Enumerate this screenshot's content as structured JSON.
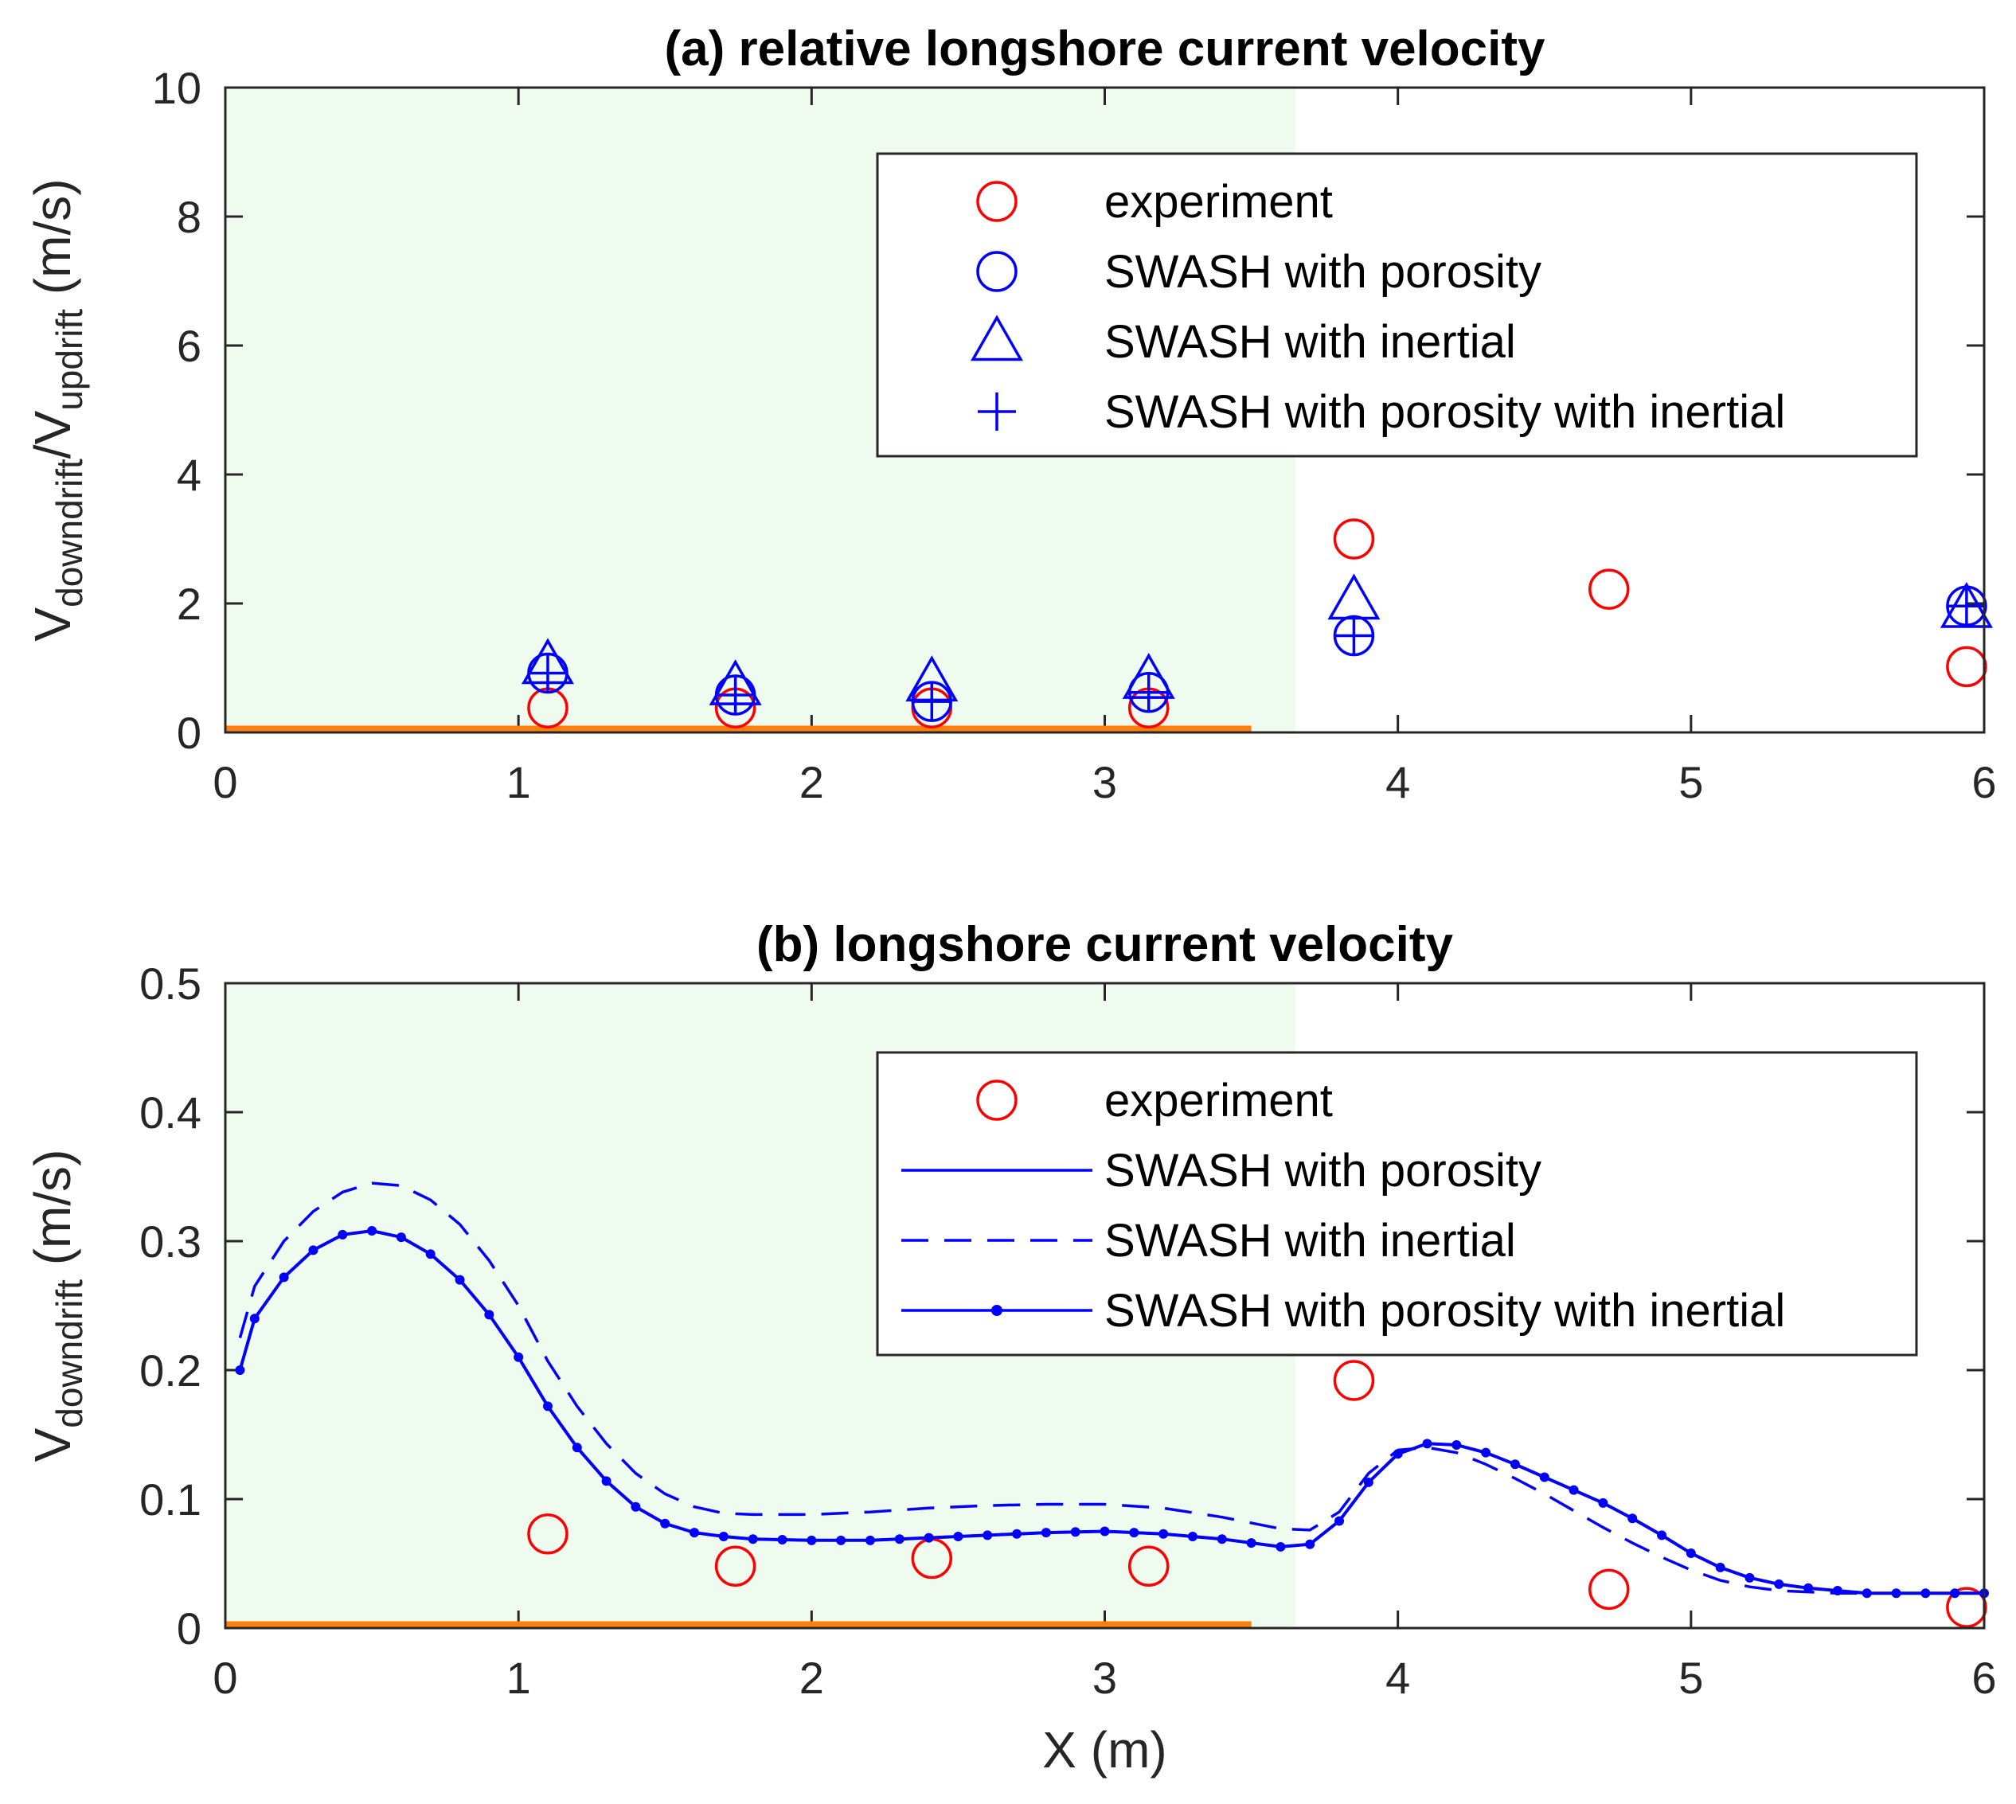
{
  "chart_data": [
    {
      "type": "scatter",
      "title": "(a) relative longshore current velocity",
      "xlabel": "",
      "ylabel": {
        "main": "V",
        "sub1": "downdrift",
        "mid": "/V",
        "sub2": "updrift",
        "unit": " (m/s)"
      },
      "xlim": [
        0,
        6
      ],
      "ylim": [
        0,
        10
      ],
      "xticks": [
        "0",
        "1",
        "2",
        "3",
        "4",
        "5",
        "6"
      ],
      "yticks": [
        "0",
        "2",
        "4",
        "6",
        "8",
        "10"
      ],
      "grid": false,
      "legend_position": "top-right",
      "shaded_region": {
        "x": [
          0,
          3.65
        ],
        "color": "#f0fbef"
      },
      "base_line": {
        "x": [
          0,
          3.5
        ],
        "y": 0,
        "color": "#ff7f0e"
      },
      "series": [
        {
          "name": "experiment",
          "marker": "circle",
          "color": "#ff0000",
          "x": [
            1.1,
            1.74,
            2.41,
            3.15,
            3.85,
            4.72,
            5.94
          ],
          "y": [
            0.38,
            0.38,
            0.38,
            0.38,
            3.0,
            2.22,
            1.02
          ]
        },
        {
          "name": "SWASH with porosity",
          "marker": "circle",
          "color": "#0000ff",
          "x": [
            1.1,
            1.74,
            2.41,
            3.15,
            3.85,
            5.94
          ],
          "y": [
            0.92,
            0.58,
            0.48,
            0.62,
            1.5,
            1.96
          ]
        },
        {
          "name": "SWASH with inertial",
          "marker": "triangle",
          "color": "#0000ff",
          "x": [
            1.1,
            1.74,
            2.41,
            3.15,
            3.85,
            5.94
          ],
          "y": [
            1.05,
            0.72,
            0.78,
            0.82,
            2.05,
            1.92
          ]
        },
        {
          "name": "SWASH with porosity with inertial",
          "marker": "plus",
          "color": "#0000ff",
          "x": [
            1.1,
            1.74,
            2.41,
            3.15,
            3.85,
            5.94
          ],
          "y": [
            0.92,
            0.58,
            0.48,
            0.62,
            1.5,
            1.96
          ]
        }
      ]
    },
    {
      "type": "line",
      "title": "(b) longshore current velocity",
      "xlabel": "X (m)",
      "ylabel": {
        "main": "V",
        "sub1": "downdrift",
        "unit": " (m/s)"
      },
      "xlim": [
        0,
        6
      ],
      "ylim": [
        0,
        0.5
      ],
      "xticks": [
        "0",
        "1",
        "2",
        "3",
        "4",
        "5",
        "6"
      ],
      "yticks": [
        "0",
        "0.1",
        "0.2",
        "0.3",
        "0.4",
        "0.5"
      ],
      "grid": false,
      "legend_position": "top-right",
      "shaded_region": {
        "x": [
          0,
          3.65
        ],
        "color": "#f0fbef"
      },
      "base_line": {
        "x": [
          0,
          3.5
        ],
        "y": 0,
        "color": "#ff7f0e"
      },
      "series": [
        {
          "name": "experiment",
          "marker": "circle",
          "color": "#ff0000",
          "x": [
            1.1,
            1.74,
            2.41,
            3.15,
            3.85,
            4.72,
            5.94
          ],
          "y": [
            0.073,
            0.048,
            0.054,
            0.048,
            0.192,
            0.03,
            0.016
          ]
        },
        {
          "name": "SWASH with porosity",
          "style": "solid",
          "color": "#0000ff",
          "x": [
            0.05,
            0.1,
            0.2,
            0.3,
            0.4,
            0.5,
            0.6,
            0.7,
            0.8,
            0.9,
            1.0,
            1.1,
            1.2,
            1.3,
            1.4,
            1.5,
            1.6,
            1.7,
            1.8,
            2.0,
            2.2,
            2.4,
            2.6,
            2.8,
            3.0,
            3.2,
            3.4,
            3.6,
            3.7,
            3.8,
            3.9,
            4.0,
            4.1,
            4.2,
            4.3,
            4.4,
            4.5,
            4.6,
            4.7,
            4.8,
            4.9,
            5.0,
            5.1,
            5.2,
            5.3,
            5.4,
            5.5,
            5.6,
            5.7,
            5.8,
            5.9,
            6.0
          ],
          "y": [
            0.2,
            0.24,
            0.272,
            0.293,
            0.305,
            0.308,
            0.303,
            0.29,
            0.27,
            0.243,
            0.21,
            0.172,
            0.14,
            0.114,
            0.094,
            0.081,
            0.074,
            0.071,
            0.069,
            0.068,
            0.068,
            0.07,
            0.072,
            0.074,
            0.075,
            0.073,
            0.069,
            0.063,
            0.065,
            0.083,
            0.113,
            0.135,
            0.143,
            0.142,
            0.136,
            0.127,
            0.117,
            0.107,
            0.097,
            0.085,
            0.072,
            0.058,
            0.047,
            0.039,
            0.034,
            0.031,
            0.029,
            0.027,
            0.027,
            0.027,
            0.027,
            0.027
          ]
        },
        {
          "name": "SWASH with inertial",
          "style": "dashed",
          "color": "#0000ff",
          "x": [
            0.05,
            0.1,
            0.2,
            0.3,
            0.4,
            0.5,
            0.6,
            0.7,
            0.8,
            0.9,
            1.0,
            1.1,
            1.2,
            1.3,
            1.4,
            1.5,
            1.6,
            1.7,
            1.8,
            2.0,
            2.2,
            2.4,
            2.6,
            2.8,
            3.0,
            3.2,
            3.4,
            3.6,
            3.7,
            3.8,
            3.9,
            4.0,
            4.1,
            4.2,
            4.3,
            4.4,
            4.5,
            4.6,
            4.7,
            4.8,
            4.9,
            5.0,
            5.1,
            5.2,
            5.3,
            5.4,
            5.5,
            5.6,
            5.7,
            5.8,
            5.9,
            6.0
          ],
          "y": [
            0.225,
            0.265,
            0.3,
            0.323,
            0.338,
            0.345,
            0.343,
            0.332,
            0.313,
            0.285,
            0.25,
            0.207,
            0.172,
            0.143,
            0.12,
            0.104,
            0.094,
            0.089,
            0.088,
            0.088,
            0.09,
            0.093,
            0.095,
            0.096,
            0.096,
            0.093,
            0.086,
            0.077,
            0.076,
            0.09,
            0.12,
            0.138,
            0.14,
            0.136,
            0.127,
            0.116,
            0.104,
            0.091,
            0.078,
            0.066,
            0.055,
            0.045,
            0.037,
            0.032,
            0.029,
            0.028,
            0.027,
            0.027,
            0.027,
            0.027,
            0.027,
            0.027
          ]
        },
        {
          "name": "SWASH with porosity with inertial",
          "style": "solid-dots",
          "color": "#0000ff",
          "x": [
            0.05,
            0.1,
            0.2,
            0.3,
            0.4,
            0.5,
            0.6,
            0.7,
            0.8,
            0.9,
            1.0,
            1.1,
            1.2,
            1.3,
            1.4,
            1.5,
            1.6,
            1.7,
            1.8,
            2.0,
            2.2,
            2.4,
            2.6,
            2.8,
            3.0,
            3.2,
            3.4,
            3.6,
            3.7,
            3.8,
            3.9,
            4.0,
            4.1,
            4.2,
            4.3,
            4.4,
            4.5,
            4.6,
            4.7,
            4.8,
            4.9,
            5.0,
            5.1,
            5.2,
            5.3,
            5.4,
            5.5,
            5.6,
            5.7,
            5.8,
            5.9,
            6.0
          ],
          "y": [
            0.2,
            0.24,
            0.272,
            0.293,
            0.305,
            0.308,
            0.303,
            0.29,
            0.27,
            0.243,
            0.21,
            0.172,
            0.14,
            0.114,
            0.094,
            0.081,
            0.074,
            0.071,
            0.069,
            0.068,
            0.068,
            0.07,
            0.072,
            0.074,
            0.075,
            0.073,
            0.069,
            0.063,
            0.065,
            0.083,
            0.113,
            0.135,
            0.143,
            0.142,
            0.136,
            0.127,
            0.117,
            0.107,
            0.097,
            0.085,
            0.072,
            0.058,
            0.047,
            0.039,
            0.034,
            0.031,
            0.029,
            0.027,
            0.027,
            0.027,
            0.027,
            0.027
          ]
        }
      ]
    }
  ]
}
